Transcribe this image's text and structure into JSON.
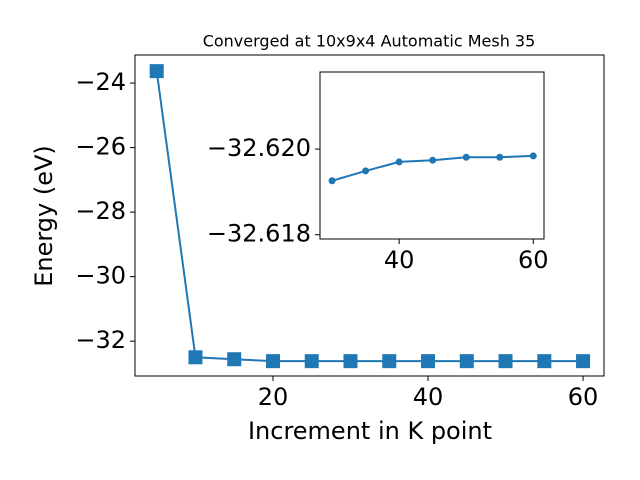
{
  "chart_data": [
    {
      "type": "line",
      "title": "Converged at 10x9x4 Automatic Mesh 35",
      "x_label": "Increment in K point",
      "y_label": "Energy (eV)",
      "marker": "square",
      "x": [
        5,
        10,
        15,
        20,
        25,
        30,
        35,
        40,
        45,
        50,
        55,
        60
      ],
      "series": [
        {
          "color": "#1f77b4",
          "values": [
            -23.63,
            -32.5,
            -32.56,
            -32.62,
            -32.62,
            -32.62,
            -32.62,
            -32.62,
            -32.62,
            -32.62,
            -32.62,
            -32.62
          ]
        }
      ],
      "xlim": [
        2.2,
        62.7
      ],
      "ylim": [
        -33.08,
        -23.13
      ],
      "xticks": [
        20,
        40,
        60
      ],
      "yticks": [
        {
          "value": -32,
          "label": "−32"
        },
        {
          "value": -30,
          "label": "−30"
        },
        {
          "value": -28,
          "label": "−28"
        },
        {
          "value": -26,
          "label": "−26"
        },
        {
          "value": -24,
          "label": "−24"
        }
      ]
    },
    {
      "type": "line",
      "marker": "circle",
      "x": [
        30,
        35,
        40,
        45,
        50,
        55,
        60
      ],
      "series": [
        {
          "color": "#1f77b4",
          "values": [
            -32.61926,
            -32.61949,
            -32.6197,
            -32.61974,
            -32.61981,
            -32.61981,
            -32.61984
          ]
        }
      ],
      "xlim": [
        28.2,
        61.6
      ],
      "ylim": [
        -32.6179,
        -32.6218
      ],
      "xticks": [
        40,
        60
      ],
      "yticks": [
        {
          "value": -32.618,
          "label": "−32.618"
        },
        {
          "value": -32.62,
          "label": "−32.620"
        }
      ]
    }
  ]
}
